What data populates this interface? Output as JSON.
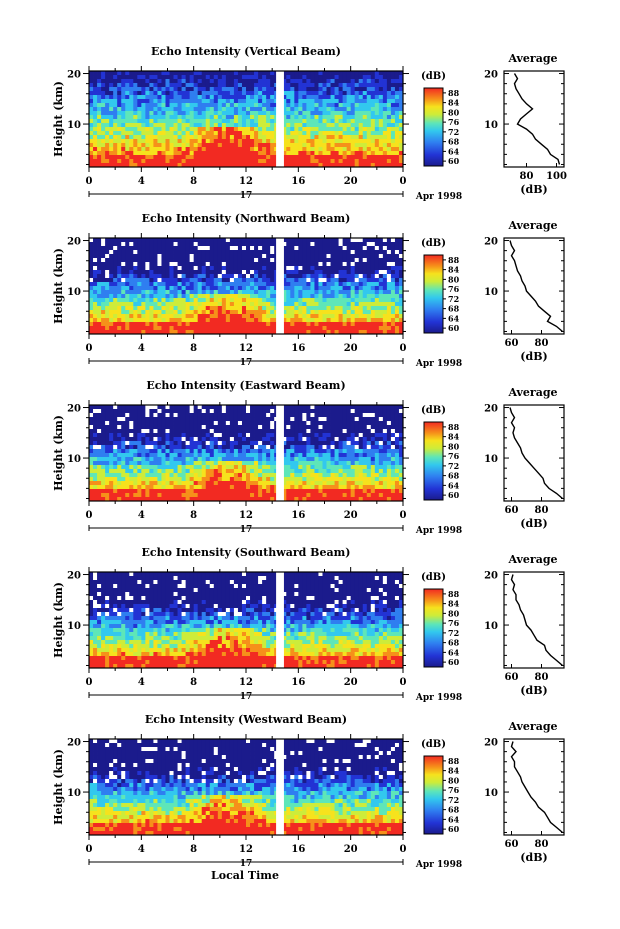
{
  "figure": {
    "xlabel": "Local Time",
    "date_label": "Apr 1998",
    "day_label": "17"
  },
  "chart_data": [
    {
      "type": "heatmap",
      "title": "Echo Intensity (Vertical Beam)",
      "ylabel": "Height (km)",
      "x_ticks": [
        "0",
        "4",
        "8",
        "12",
        "16",
        "20",
        "0"
      ],
      "xlim": [
        0,
        24
      ],
      "y_ticks": [
        "10",
        "20"
      ],
      "ylim": [
        1.5,
        20.5
      ],
      "gap": [
        14.3,
        14.9
      ],
      "colorbar": {
        "label": "(dB)",
        "ticks": [
          "60",
          "64",
          "68",
          "72",
          "76",
          "80",
          "84",
          "88"
        ],
        "range": [
          60,
          88
        ]
      },
      "profile": {
        "title": "Average",
        "xlabel": "(dB)",
        "x_ticks": [
          "80",
          "100"
        ],
        "xlim": [
          65,
          105
        ],
        "ylim": [
          1.5,
          20.5
        ],
        "y_ticks": [
          "10",
          "20"
        ],
        "heights": [
          2,
          3,
          4,
          5,
          6,
          7,
          8,
          9,
          10,
          11,
          12,
          13,
          14,
          15,
          16,
          17,
          18,
          19,
          20
        ],
        "values": [
          102,
          101,
          96,
          94,
          90,
          86,
          84,
          80,
          74,
          76,
          80,
          84,
          80,
          77,
          75,
          73,
          72,
          74,
          72
        ]
      }
    },
    {
      "type": "heatmap",
      "title": "Echo Intensity (Northward Beam)",
      "ylabel": "Height (km)",
      "x_ticks": [
        "0",
        "4",
        "8",
        "12",
        "16",
        "20",
        "0"
      ],
      "xlim": [
        0,
        24
      ],
      "y_ticks": [
        "10",
        "20"
      ],
      "ylim": [
        1.5,
        20.5
      ],
      "gap": [
        14.3,
        14.9
      ],
      "colorbar": {
        "label": "(dB)",
        "ticks": [
          "60",
          "64",
          "68",
          "72",
          "76",
          "80",
          "84",
          "88"
        ],
        "range": [
          60,
          88
        ]
      },
      "profile": {
        "title": "Average",
        "xlabel": "(dB)",
        "x_ticks": [
          "60",
          "80"
        ],
        "xlim": [
          55,
          95
        ],
        "ylim": [
          1.5,
          20.5
        ],
        "y_ticks": [
          "10",
          "20"
        ],
        "heights": [
          2,
          3,
          4,
          5,
          6,
          7,
          8,
          9,
          10,
          11,
          12,
          13,
          14,
          15,
          16,
          17,
          18,
          19,
          20
        ],
        "values": [
          94,
          90,
          84,
          86,
          82,
          78,
          76,
          73,
          70,
          69,
          67,
          66,
          64,
          63,
          62,
          60,
          62,
          60,
          59
        ]
      }
    },
    {
      "type": "heatmap",
      "title": "Echo Intensity (Eastward Beam)",
      "ylabel": "Height (km)",
      "x_ticks": [
        "0",
        "4",
        "8",
        "12",
        "16",
        "20",
        "0"
      ],
      "xlim": [
        0,
        24
      ],
      "y_ticks": [
        "10",
        "20"
      ],
      "ylim": [
        1.5,
        20.5
      ],
      "gap": [
        14.3,
        14.9
      ],
      "colorbar": {
        "label": "(dB)",
        "ticks": [
          "60",
          "64",
          "68",
          "72",
          "76",
          "80",
          "84",
          "88"
        ],
        "range": [
          60,
          88
        ]
      },
      "profile": {
        "title": "Average",
        "xlabel": "(dB)",
        "x_ticks": [
          "60",
          "80"
        ],
        "xlim": [
          55,
          95
        ],
        "ylim": [
          1.5,
          20.5
        ],
        "y_ticks": [
          "10",
          "20"
        ],
        "heights": [
          2,
          3,
          4,
          5,
          6,
          7,
          8,
          9,
          10,
          11,
          12,
          13,
          14,
          15,
          16,
          17,
          18,
          19,
          20
        ],
        "values": [
          94,
          90,
          85,
          82,
          81,
          78,
          75,
          72,
          69,
          67,
          66,
          64,
          62,
          61,
          62,
          60,
          62,
          60,
          59
        ]
      }
    },
    {
      "type": "heatmap",
      "title": "Echo Intensity (Southward Beam)",
      "ylabel": "Height (km)",
      "x_ticks": [
        "0",
        "4",
        "8",
        "12",
        "16",
        "20",
        "0"
      ],
      "xlim": [
        0,
        24
      ],
      "y_ticks": [
        "10",
        "20"
      ],
      "ylim": [
        1.5,
        20.5
      ],
      "gap": [
        14.3,
        14.9
      ],
      "colorbar": {
        "label": "(dB)",
        "ticks": [
          "60",
          "64",
          "68",
          "72",
          "76",
          "80",
          "84",
          "88"
        ],
        "range": [
          60,
          88
        ]
      },
      "profile": {
        "title": "Average",
        "xlabel": "(dB)",
        "x_ticks": [
          "60",
          "80"
        ],
        "xlim": [
          55,
          95
        ],
        "ylim": [
          1.5,
          20.5
        ],
        "y_ticks": [
          "10",
          "20"
        ],
        "heights": [
          2,
          3,
          4,
          5,
          6,
          7,
          8,
          9,
          10,
          11,
          12,
          13,
          14,
          15,
          16,
          17,
          18,
          19,
          20
        ],
        "values": [
          94,
          90,
          86,
          83,
          82,
          77,
          75,
          73,
          70,
          69,
          68,
          66,
          65,
          63,
          63,
          61,
          62,
          60,
          61
        ]
      }
    },
    {
      "type": "heatmap",
      "title": "Echo Intensity (Westward Beam)",
      "ylabel": "Height (km)",
      "x_ticks": [
        "0",
        "4",
        "8",
        "12",
        "16",
        "20",
        "0"
      ],
      "xlim": [
        0,
        24
      ],
      "y_ticks": [
        "10",
        "20"
      ],
      "ylim": [
        1.5,
        20.5
      ],
      "gap": [
        14.3,
        14.9
      ],
      "colorbar": {
        "label": "(dB)",
        "ticks": [
          "60",
          "64",
          "68",
          "72",
          "76",
          "80",
          "84",
          "88"
        ],
        "range": [
          60,
          88
        ]
      },
      "profile": {
        "title": "Average",
        "xlabel": "(dB)",
        "x_ticks": [
          "60",
          "80"
        ],
        "xlim": [
          55,
          95
        ],
        "ylim": [
          1.5,
          20.5
        ],
        "y_ticks": [
          "10",
          "20"
        ],
        "heights": [
          2,
          3,
          4,
          5,
          6,
          7,
          8,
          9,
          10,
          11,
          12,
          13,
          14,
          15,
          16,
          17,
          18,
          19,
          20
        ],
        "values": [
          94,
          90,
          86,
          84,
          82,
          78,
          76,
          73,
          71,
          69,
          67,
          66,
          64,
          62,
          62,
          60,
          63,
          60,
          61
        ]
      }
    }
  ]
}
